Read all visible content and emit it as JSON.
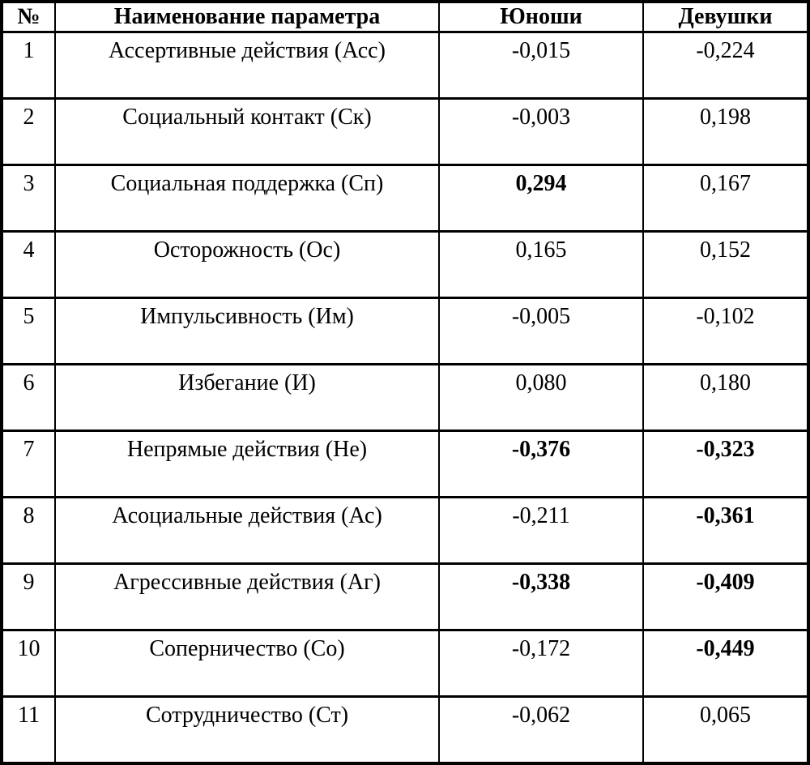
{
  "table": {
    "headers": {
      "num": "№",
      "param": "Наименование параметра",
      "male": "Юноши",
      "female": "Девушки"
    },
    "rows": [
      {
        "num": "1",
        "param": "Ассертивные действия (Асс)",
        "male": "-0,015",
        "female": "-0,224",
        "male_bold": false,
        "female_bold": false
      },
      {
        "num": "2",
        "param": "Социальный контакт (Ск)",
        "male": "-0,003",
        "female": "0,198",
        "male_bold": false,
        "female_bold": false
      },
      {
        "num": "3",
        "param": "Социальная поддержка (Сп)",
        "male": "0,294",
        "female": "0,167",
        "male_bold": true,
        "female_bold": false
      },
      {
        "num": "4",
        "param": "Осторожность (Ос)",
        "male": "0,165",
        "female": "0,152",
        "male_bold": false,
        "female_bold": false
      },
      {
        "num": "5",
        "param": "Импульсивность (Им)",
        "male": "-0,005",
        "female": "-0,102",
        "male_bold": false,
        "female_bold": false
      },
      {
        "num": "6",
        "param": "Избегание (И)",
        "male": "0,080",
        "female": "0,180",
        "male_bold": false,
        "female_bold": false
      },
      {
        "num": "7",
        "param": "Непрямые действия (Не)",
        "male": "-0,376",
        "female": "-0,323",
        "male_bold": true,
        "female_bold": true
      },
      {
        "num": "8",
        "param": "Асоциальные действия (Ас)",
        "male": "-0,211",
        "female": "-0,361",
        "male_bold": false,
        "female_bold": true
      },
      {
        "num": "9",
        "param": "Агрессивные действия (Аг)",
        "male": "-0,338",
        "female": "-0,409",
        "male_bold": true,
        "female_bold": true
      },
      {
        "num": "10",
        "param": "Соперничество (Со)",
        "male": "-0,172",
        "female": "-0,449",
        "male_bold": false,
        "female_bold": true
      },
      {
        "num": "11",
        "param": "Сотрудничество (Ст)",
        "male": "-0,062",
        "female": "0,065",
        "male_bold": false,
        "female_bold": false
      }
    ]
  }
}
